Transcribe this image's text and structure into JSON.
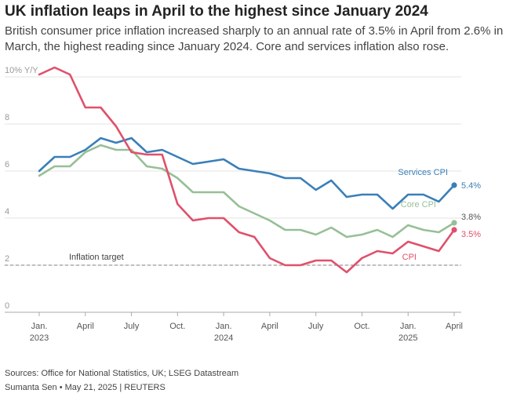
{
  "header": {
    "title": "UK inflation leaps in April to the highest since January 2024",
    "subtitle": "British consumer price inflation increased sharply to an annual rate of 3.5% in April from 2.6% in March, the highest reading since January 2024. Core and services inflation also rose."
  },
  "footer": {
    "source": "Sources: Office for National Statistics, UK; LSEG Datastream",
    "credit": "Sumanta Sen • May 21, 2025 | REUTERS"
  },
  "chart_data": {
    "type": "line",
    "x": [
      "2023-01",
      "2023-02",
      "2023-03",
      "2023-04",
      "2023-05",
      "2023-06",
      "2023-07",
      "2023-08",
      "2023-09",
      "2023-10",
      "2023-11",
      "2023-12",
      "2024-01",
      "2024-02",
      "2024-03",
      "2024-04",
      "2024-05",
      "2024-06",
      "2024-07",
      "2024-08",
      "2024-09",
      "2024-10",
      "2024-11",
      "2024-12",
      "2025-01",
      "2025-02",
      "2025-03",
      "2025-04"
    ],
    "series": [
      {
        "name": "Services CPI",
        "color": "#3a7fb8",
        "end_label": "5.4%",
        "values": [
          6.0,
          6.6,
          6.6,
          6.9,
          7.4,
          7.2,
          7.4,
          6.8,
          6.9,
          6.6,
          6.3,
          6.4,
          6.5,
          6.1,
          6.0,
          5.9,
          5.7,
          5.7,
          5.2,
          5.6,
          4.9,
          5.0,
          5.0,
          4.4,
          5.0,
          5.0,
          4.7,
          5.4
        ]
      },
      {
        "name": "Core CPI",
        "color": "#97bf97",
        "end_label": "3.8%",
        "values": [
          5.8,
          6.2,
          6.2,
          6.8,
          7.1,
          6.9,
          6.9,
          6.2,
          6.1,
          5.7,
          5.1,
          5.1,
          5.1,
          4.5,
          4.2,
          3.9,
          3.5,
          3.5,
          3.3,
          3.6,
          3.2,
          3.3,
          3.5,
          3.2,
          3.7,
          3.5,
          3.4,
          3.8
        ]
      },
      {
        "name": "CPI",
        "color": "#e0506b",
        "end_label": "3.5%",
        "values": [
          10.1,
          10.4,
          10.1,
          8.7,
          8.7,
          7.9,
          6.8,
          6.7,
          6.7,
          4.6,
          3.9,
          4.0,
          4.0,
          3.4,
          3.2,
          2.3,
          2.0,
          2.0,
          2.2,
          2.2,
          1.7,
          2.3,
          2.6,
          2.5,
          3.0,
          2.8,
          2.6,
          3.5
        ]
      }
    ],
    "reference_line": {
      "value": 2,
      "label": "Inflation target"
    },
    "ylim": [
      0,
      10
    ],
    "yticks": [
      0,
      2,
      4,
      6,
      8,
      10
    ],
    "ytick_labels": [
      "0",
      "2",
      "4",
      "6",
      "8",
      "10% Y/Y"
    ],
    "xticks": [
      {
        "x": "2023-01",
        "label": "Jan.",
        "year": "2023"
      },
      {
        "x": "2023-04",
        "label": "April",
        "year": ""
      },
      {
        "x": "2023-07",
        "label": "July",
        "year": ""
      },
      {
        "x": "2023-10",
        "label": "Oct.",
        "year": ""
      },
      {
        "x": "2024-01",
        "label": "Jan.",
        "year": "2024"
      },
      {
        "x": "2024-04",
        "label": "April",
        "year": ""
      },
      {
        "x": "2024-07",
        "label": "July",
        "year": ""
      },
      {
        "x": "2024-10",
        "label": "Oct.",
        "year": ""
      },
      {
        "x": "2025-01",
        "label": "Jan.",
        "year": "2025"
      },
      {
        "x": "2025-04",
        "label": "April",
        "year": ""
      }
    ],
    "grid": true,
    "legend": "inline labels at line ends"
  }
}
